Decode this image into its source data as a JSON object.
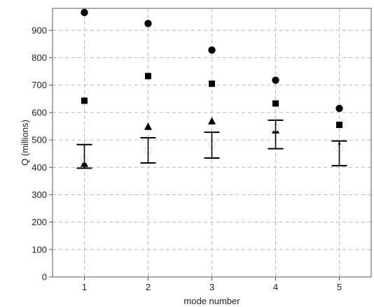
{
  "chart_data": {
    "type": "scatter",
    "title": "",
    "xlabel": "mode number",
    "ylabel": "Q (millions)",
    "xlim": [
      0.5,
      5.5
    ],
    "ylim": [
      0,
      980
    ],
    "x_ticks": [
      1,
      2,
      3,
      4,
      5
    ],
    "y_ticks": [
      0,
      100,
      200,
      300,
      400,
      500,
      600,
      700,
      800,
      900
    ],
    "grid": true,
    "grid_style": "dashed",
    "legend": "none",
    "series": [
      {
        "marker": "circle-filled",
        "x": [
          1,
          2,
          3,
          4,
          5
        ],
        "y": [
          965,
          925,
          828,
          718,
          615
        ]
      },
      {
        "marker": "square-filled",
        "x": [
          1,
          2,
          3,
          4,
          5
        ],
        "y": [
          643,
          733,
          705,
          633,
          555
        ]
      },
      {
        "marker": "triangle-filled",
        "x": [
          1,
          2,
          3,
          4,
          5
        ],
        "y": [
          413,
          548,
          568,
          535,
          478
        ]
      },
      {
        "marker": "circle-open",
        "x": [
          1,
          2,
          3,
          4,
          5
        ],
        "y": [
          430,
          462,
          482,
          545,
          470
        ]
      },
      {
        "marker": "errorbar",
        "x": [
          1,
          2,
          3,
          4,
          5
        ],
        "y": [
          440,
          462,
          480,
          520,
          452
        ],
        "low": [
          397,
          416,
          434,
          468,
          406
        ],
        "high": [
          483,
          508,
          528,
          572,
          496
        ]
      }
    ],
    "colors": {
      "marker": "#000000",
      "open_fill": "#ffffff",
      "grid": "#b8b8b8",
      "axis": "#555555"
    }
  }
}
